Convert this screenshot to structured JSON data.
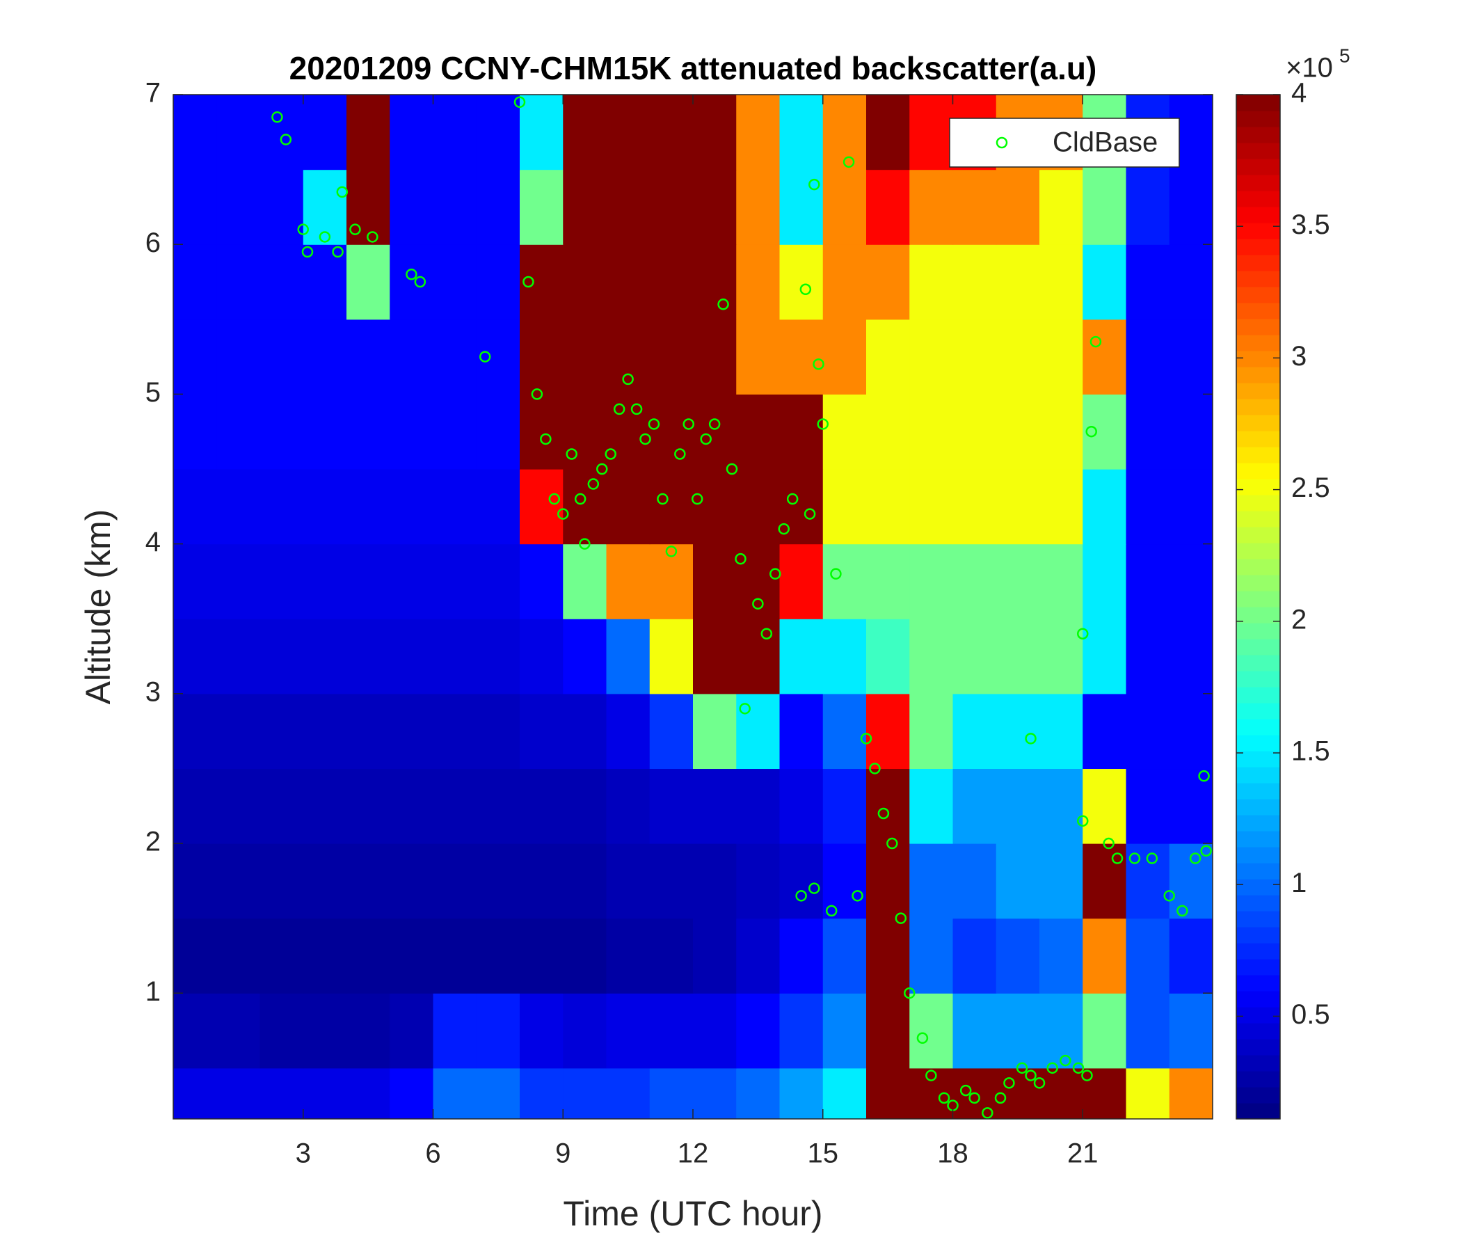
{
  "chart_data": {
    "type": "heatmap",
    "title": "20201209 CCNY-CHM15K attenuated backscatter(a.u)",
    "x_label": "Time (UTC hour)",
    "y_label": "Altitude (km)",
    "xlim": [
      0,
      24
    ],
    "ylim": [
      0.16,
      7
    ],
    "xticks": [
      3,
      6,
      9,
      12,
      15,
      18,
      21
    ],
    "yticks": [
      1,
      2,
      3,
      4,
      5,
      6,
      7
    ],
    "x": [
      0.5,
      1.5,
      2.5,
      3.5,
      4.5,
      5.5,
      6.5,
      7.5,
      8.5,
      9.5,
      10.5,
      11.5,
      12.5,
      13.5,
      14.5,
      15.5,
      16.5,
      17.5,
      18.5,
      19.5,
      20.5,
      21.5,
      22.5,
      23.5
    ],
    "y": [
      0.25,
      0.75,
      1.25,
      1.75,
      2.25,
      2.75,
      3.25,
      3.75,
      4.25,
      4.75,
      5.25,
      5.75,
      6.25,
      6.75
    ],
    "z": [
      [
        0.5,
        0.5,
        0.5,
        0.5,
        0.5,
        0.6,
        1,
        1,
        0.8,
        0.8,
        0.8,
        0.9,
        0.9,
        1,
        1.2,
        1.5,
        4,
        4,
        4,
        4,
        4,
        4,
        2.5,
        3
      ],
      [
        0.3,
        0.3,
        0.25,
        0.25,
        0.25,
        0.3,
        0.7,
        0.7,
        0.5,
        0.45,
        0.5,
        0.5,
        0.5,
        0.6,
        0.8,
        1.1,
        4,
        2,
        1.2,
        1.2,
        1.2,
        2,
        0.9,
        1
      ],
      [
        0.2,
        0.2,
        0.2,
        0.2,
        0.2,
        0.2,
        0.2,
        0.2,
        0.2,
        0.2,
        0.25,
        0.25,
        0.3,
        0.4,
        0.6,
        0.9,
        4,
        1,
        0.8,
        0.9,
        1,
        3,
        0.9,
        0.7
      ],
      [
        0.25,
        0.25,
        0.25,
        0.25,
        0.25,
        0.25,
        0.25,
        0.25,
        0.25,
        0.25,
        0.3,
        0.3,
        0.3,
        0.35,
        0.4,
        0.6,
        4,
        1,
        1,
        1.2,
        1.2,
        4,
        0.8,
        1
      ],
      [
        0.3,
        0.3,
        0.3,
        0.3,
        0.3,
        0.3,
        0.3,
        0.3,
        0.3,
        0.3,
        0.35,
        0.4,
        0.4,
        0.4,
        0.5,
        0.7,
        4,
        1.5,
        1.2,
        1.2,
        1.2,
        2.5,
        0.6,
        0.6
      ],
      [
        0.35,
        0.35,
        0.35,
        0.35,
        0.35,
        0.35,
        0.35,
        0.35,
        0.4,
        0.4,
        0.5,
        0.8,
        2,
        1.5,
        0.6,
        1,
        3.5,
        2,
        1.5,
        1.5,
        1.5,
        0.6,
        0.6,
        0.6
      ],
      [
        0.45,
        0.45,
        0.45,
        0.45,
        0.45,
        0.45,
        0.45,
        0.45,
        0.5,
        0.6,
        1,
        2.5,
        4,
        4,
        1.5,
        1.5,
        1.8,
        2,
        2,
        2,
        2,
        1.5,
        0.6,
        0.6
      ],
      [
        0.5,
        0.5,
        0.5,
        0.5,
        0.5,
        0.5,
        0.5,
        0.5,
        0.6,
        2,
        3,
        3,
        4,
        4,
        3.5,
        2,
        2,
        2,
        2,
        2,
        2,
        1.5,
        0.6,
        0.6
      ],
      [
        0.55,
        0.55,
        0.55,
        0.55,
        0.55,
        0.55,
        0.55,
        0.55,
        3.5,
        4,
        4,
        4,
        4,
        4,
        4,
        2.5,
        2.5,
        2.5,
        2.5,
        2.5,
        2.5,
        1.5,
        0.6,
        0.6
      ],
      [
        0.6,
        0.6,
        0.6,
        0.6,
        0.6,
        0.6,
        0.6,
        0.6,
        4,
        4,
        4,
        4,
        4,
        4,
        4,
        2.5,
        2.5,
        2.5,
        2.5,
        2.5,
        2.5,
        2,
        0.6,
        0.6
      ],
      [
        0.6,
        0.6,
        0.6,
        0.6,
        0.6,
        0.6,
        0.6,
        0.6,
        4,
        4,
        4,
        4,
        4,
        3,
        3,
        3,
        2.5,
        2.5,
        2.5,
        2.5,
        2.5,
        3,
        0.6,
        0.6
      ],
      [
        0.6,
        0.6,
        0.6,
        0.6,
        2,
        0.6,
        0.6,
        0.6,
        4,
        4,
        4,
        4,
        4,
        3,
        2.5,
        3,
        3,
        2.5,
        2.5,
        2.5,
        2.5,
        1.5,
        0.6,
        0.6
      ],
      [
        0.6,
        0.6,
        0.6,
        1.5,
        4,
        0.6,
        0.6,
        0.6,
        2,
        4,
        4,
        4,
        4,
        3,
        1.5,
        3,
        3.5,
        3,
        3,
        3,
        2.5,
        2,
        0.7,
        0.6
      ],
      [
        0.6,
        0.6,
        0.6,
        0.6,
        4,
        0.6,
        0.6,
        0.6,
        1.5,
        4,
        4,
        4,
        4,
        3,
        1.5,
        3,
        4,
        3.5,
        3.5,
        3,
        3,
        2,
        0.7,
        0.6
      ]
    ],
    "colormap": "jet",
    "colorbar": {
      "lim": [
        0.11,
        4
      ],
      "ticks": [
        0.5,
        1,
        1.5,
        2,
        2.5,
        3,
        3.5,
        4
      ],
      "multiplier": "×10",
      "multiplier_exponent": "5"
    },
    "legend": "upper right",
    "series": [
      {
        "name": "CldBase",
        "type": "scatter",
        "color": "#00ff00",
        "x": [
          2.4,
          2.6,
          3.0,
          3.1,
          3.5,
          3.8,
          3.9,
          4.2,
          4.6,
          5.5,
          5.7,
          7.2,
          8.0,
          8.2,
          8.4,
          8.6,
          8.8,
          9.0,
          9.2,
          9.4,
          9.5,
          9.7,
          9.9,
          10.1,
          10.3,
          10.5,
          10.7,
          10.9,
          11.1,
          11.3,
          11.5,
          11.7,
          11.9,
          12.1,
          12.3,
          12.5,
          12.7,
          12.9,
          13.1,
          13.2,
          13.5,
          13.7,
          13.9,
          14.1,
          14.3,
          14.6,
          14.8,
          14.9,
          15.0,
          14.7,
          14.5,
          14.8,
          15.2,
          15.3,
          15.6,
          15.8,
          16.0,
          16.2,
          16.4,
          16.6,
          16.8,
          17.0,
          17.3,
          17.5,
          17.8,
          18.0,
          18.3,
          18.5,
          18.8,
          19.1,
          19.3,
          19.6,
          19.8,
          20.0,
          20.3,
          20.6,
          20.9,
          21.1,
          21.0,
          21.2,
          21.3,
          21.0,
          19.8,
          21.6,
          21.8,
          22.2,
          22.6,
          23.0,
          23.3,
          23.6,
          23.8,
          23.85
        ],
        "values": [
          6.85,
          6.7,
          6.1,
          5.95,
          6.05,
          5.95,
          6.35,
          6.1,
          6.05,
          5.8,
          5.75,
          5.25,
          6.95,
          5.75,
          5.0,
          4.7,
          4.3,
          4.2,
          4.6,
          4.3,
          4.0,
          4.4,
          4.5,
          4.6,
          4.9,
          5.1,
          4.9,
          4.7,
          4.8,
          4.3,
          3.95,
          4.6,
          4.8,
          4.3,
          4.7,
          4.8,
          5.6,
          4.5,
          3.9,
          2.9,
          3.6,
          3.4,
          3.8,
          4.1,
          4.3,
          5.7,
          6.4,
          5.2,
          4.8,
          4.2,
          1.65,
          1.7,
          1.55,
          3.8,
          6.55,
          1.65,
          2.7,
          2.5,
          2.2,
          2.0,
          1.5,
          1.0,
          0.7,
          0.45,
          0.3,
          0.25,
          0.35,
          0.3,
          0.2,
          0.3,
          0.4,
          0.5,
          0.45,
          0.4,
          0.5,
          0.55,
          0.5,
          0.45,
          2.15,
          4.75,
          5.35,
          3.4,
          2.7,
          2.0,
          1.9,
          1.9,
          1.9,
          1.65,
          1.55,
          1.9,
          2.45,
          1.95
        ]
      }
    ]
  }
}
